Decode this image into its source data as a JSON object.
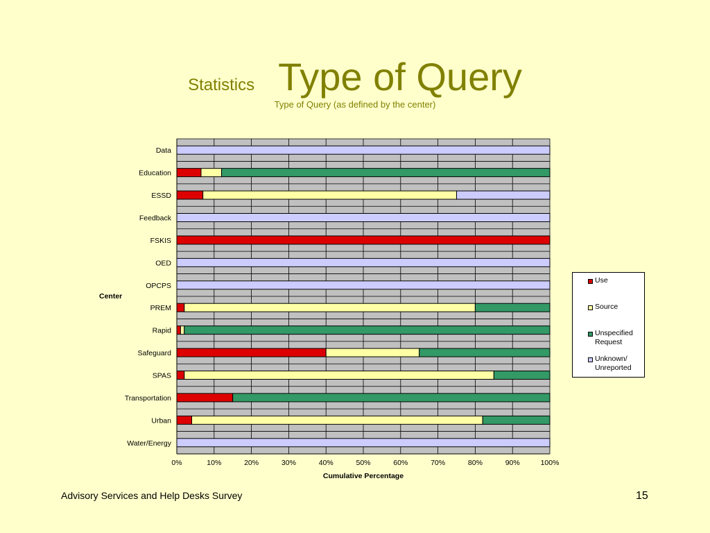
{
  "slide": {
    "small_title": "Statistics",
    "big_title": "Type of Query",
    "subtitle": "Type of Query (as defined by the center)",
    "footer_left": "Advisory Services and Help Desks Survey",
    "page_number": "15"
  },
  "colors": {
    "background": "#FFFFCC",
    "title": "#808000",
    "plot_area": "#C0C0C0",
    "use": "#DD0000",
    "source": "#FFFFA6",
    "unspecified": "#339966",
    "unknown": "#CCCCFF"
  },
  "chart_data": {
    "type": "bar",
    "orientation": "horizontal",
    "stacked": "100%",
    "title": "",
    "xlabel": "Cumulative Percentage",
    "ylabel": "Center",
    "xlim": [
      0,
      100
    ],
    "x_ticks": [
      "0%",
      "10%",
      "20%",
      "30%",
      "40%",
      "50%",
      "60%",
      "70%",
      "80%",
      "90%",
      "100%"
    ],
    "grid": true,
    "legend_position": "right",
    "categories": [
      "Data",
      "Education",
      "ESSD",
      "Feedback",
      "FSKIS",
      "OED",
      "OPCPS",
      "PREM",
      "Rapid",
      "Safeguard",
      "SPAS",
      "Transportation",
      "Urban",
      "Water/Energy"
    ],
    "series": [
      {
        "name": "Use",
        "color": "#DD0000",
        "values": [
          0,
          6.5,
          7,
          0,
          100,
          0,
          0,
          2,
          1,
          40,
          2,
          15,
          4,
          0
        ]
      },
      {
        "name": "Source",
        "color": "#FFFFA6",
        "values": [
          0,
          5.5,
          68,
          0,
          0,
          0,
          0,
          78,
          1,
          25,
          83,
          0,
          78,
          0
        ]
      },
      {
        "name": "Unspecified Request",
        "color": "#339966",
        "values": [
          0,
          88,
          0,
          0,
          0,
          0,
          0,
          20,
          98,
          35,
          15,
          85,
          18,
          0
        ]
      },
      {
        "name": "Unknown/ Unreported",
        "color": "#CCCCFF",
        "values": [
          100,
          0,
          25,
          100,
          0,
          100,
          100,
          0,
          0,
          0,
          0,
          0,
          0,
          100
        ]
      }
    ]
  }
}
